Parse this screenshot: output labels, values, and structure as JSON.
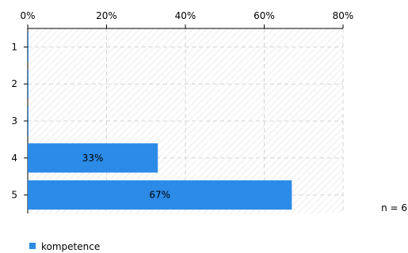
{
  "chart_data": {
    "type": "bar",
    "orientation": "horizontal",
    "categories": [
      "1",
      "2",
      "3",
      "4",
      "5"
    ],
    "series": [
      {
        "name": "kompetence",
        "values": [
          0,
          0,
          0,
          33,
          67
        ],
        "data_labels": [
          "",
          "",
          "",
          "33%",
          "67%"
        ]
      }
    ],
    "xlim": [
      0,
      80
    ],
    "x_ticks": [
      "0%",
      "20%",
      "40%",
      "60%",
      "80%"
    ],
    "x_axis_position": "top",
    "grid": true,
    "legend_position": "bottom-left",
    "bar_color": "#2b8be6",
    "annotation": "n = 6"
  }
}
